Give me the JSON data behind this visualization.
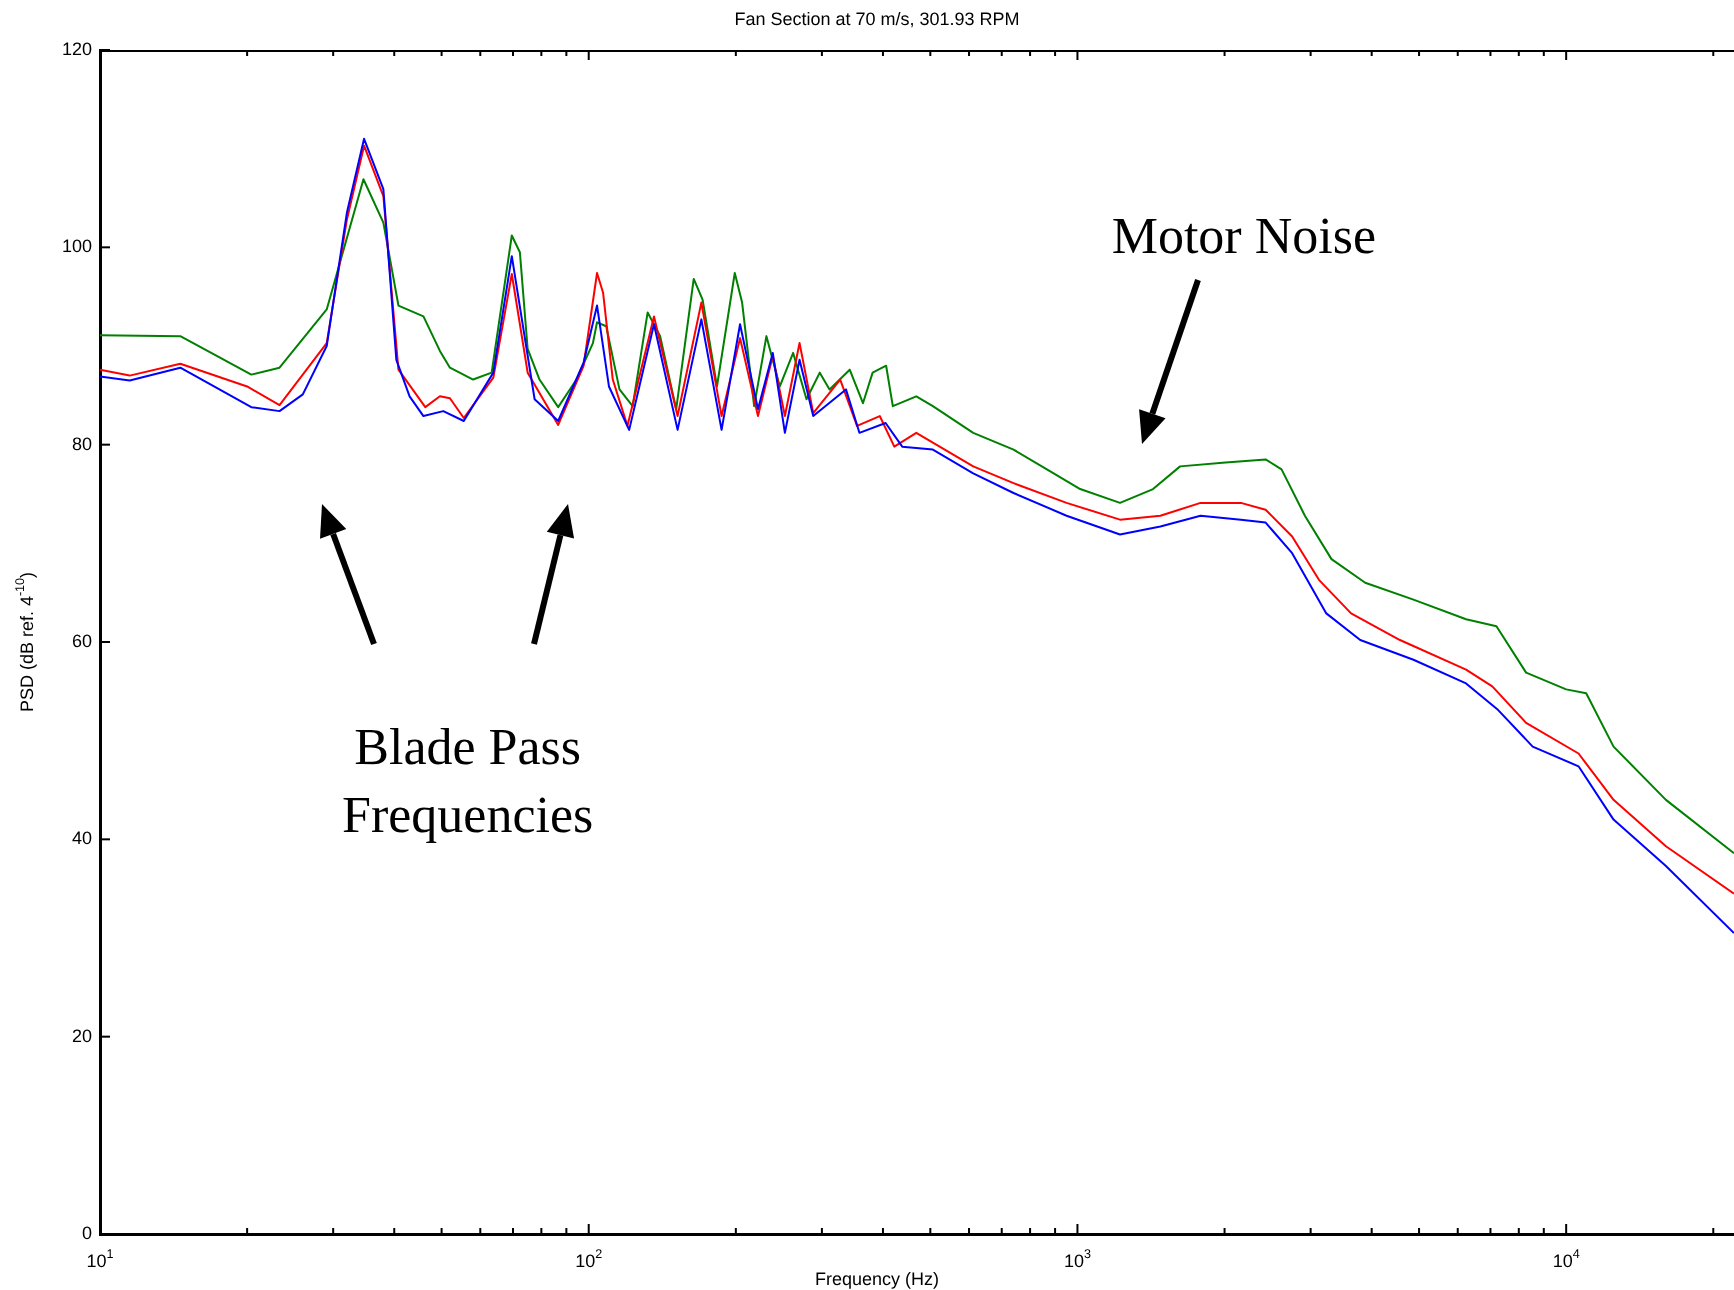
{
  "chart_data": {
    "type": "line",
    "title": "Fan Section at 70 m/s, 301.93 RPM",
    "xlabel": "Frequency (Hz)",
    "ylabel": "PSD (dB ref. 4$^{-10}$)",
    "log": "x",
    "grid": false,
    "legend": false,
    "marker": "none",
    "xlim": [
      10,
      22050
    ],
    "ylim": [
      0,
      120
    ],
    "xticks": [
      {
        "value": 10,
        "label": "10$^{1}$"
      },
      {
        "value": 20,
        "label": null
      },
      {
        "value": 30,
        "label": null
      },
      {
        "value": 40,
        "label": null
      },
      {
        "value": 50,
        "label": null
      },
      {
        "value": 60,
        "label": null
      },
      {
        "value": 70,
        "label": null
      },
      {
        "value": 80,
        "label": null
      },
      {
        "value": 90,
        "label": null
      },
      {
        "value": 100,
        "label": "10$^{2}$"
      },
      {
        "value": 200,
        "label": null
      },
      {
        "value": 300,
        "label": null
      },
      {
        "value": 400,
        "label": null
      },
      {
        "value": 500,
        "label": null
      },
      {
        "value": 600,
        "label": null
      },
      {
        "value": 700,
        "label": null
      },
      {
        "value": 800,
        "label": null
      },
      {
        "value": 900,
        "label": null
      },
      {
        "value": 1000,
        "label": "10$^{3}$"
      },
      {
        "value": 2000,
        "label": null
      },
      {
        "value": 3000,
        "label": null
      },
      {
        "value": 4000,
        "label": null
      },
      {
        "value": 5000,
        "label": null
      },
      {
        "value": 6000,
        "label": null
      },
      {
        "value": 7000,
        "label": null
      },
      {
        "value": 8000,
        "label": null
      },
      {
        "value": 9000,
        "label": null
      },
      {
        "value": 10000,
        "label": "10$^{4}$"
      },
      {
        "value": 20000,
        "label": null
      }
    ],
    "yticks": [
      0,
      20,
      40,
      60,
      80,
      100,
      120
    ],
    "annotations": [
      "Motor Noise",
      "Blade Pass\nFrequencies"
    ],
    "series": [
      {
        "color": "#0000ff",
        "x": [
          10,
          11.5,
          14.6,
          20.4,
          23.3,
          26,
          29.1,
          32,
          34.7,
          38,
          40.4,
          43,
          45.9,
          50.4,
          55.5,
          63.8,
          69.6,
          77.5,
          86.6,
          97.6,
          104,
          110,
          121,
          136,
          152,
          170,
          187,
          204,
          222,
          238,
          252,
          270,
          288,
          336,
          358,
          405,
          438,
          506,
          612,
          740,
          950,
          1222,
          1478,
          1786,
          2160,
          2427,
          2750,
          3230,
          3790,
          4870,
          6240,
          7260,
          8540,
          10600,
          12500,
          16000,
          22050
        ],
        "values": [
          86.9,
          86.5,
          87.8,
          83.8,
          83.4,
          85.1,
          90,
          103.5,
          111,
          105.9,
          88.6,
          84.9,
          82.9,
          83.4,
          82.4,
          87.3,
          99.1,
          84.6,
          82.4,
          88.3,
          94.1,
          85.9,
          81.5,
          92.2,
          81.5,
          92.7,
          81.5,
          92.2,
          83.6,
          89.3,
          81.2,
          88.6,
          82.9,
          85.6,
          81.2,
          82.2,
          79.8,
          79.5,
          77.1,
          75.1,
          72.8,
          70.9,
          71.7,
          72.8,
          72.4,
          72.1,
          69,
          62.9,
          60.2,
          58.2,
          55.8,
          53.1,
          49.4,
          47.4,
          42,
          37.3,
          30.5
        ]
      },
      {
        "color": "#ff0000",
        "x": [
          10,
          11.5,
          14.6,
          20,
          23.3,
          29.1,
          32,
          34.7,
          38,
          40.8,
          46.3,
          49.6,
          52,
          55.5,
          63.8,
          69.6,
          75,
          86.6,
          97.6,
          104,
          107,
          112,
          120,
          136,
          152,
          170,
          187,
          204,
          222,
          238,
          252,
          270,
          288,
          327,
          354,
          394,
          422,
          468,
          506,
          612,
          740,
          950,
          1222,
          1478,
          1786,
          2160,
          2427,
          2750,
          3120,
          3630,
          4570,
          6240,
          7060,
          8280,
          10600,
          12500,
          16000,
          22050
        ],
        "values": [
          87.6,
          87,
          88.2,
          85.9,
          84,
          90.3,
          102.8,
          110.3,
          105.2,
          87.6,
          83.8,
          84.9,
          84.7,
          82.7,
          86.8,
          97.3,
          87.3,
          82,
          88,
          97.4,
          95.4,
          86.6,
          81.9,
          93,
          82.9,
          94.4,
          82.9,
          90.8,
          82.9,
          89,
          82.9,
          90.3,
          83.2,
          86.6,
          81.9,
          82.9,
          79.8,
          81.2,
          80.2,
          77.8,
          76.1,
          74.1,
          72.4,
          72.8,
          74.1,
          74.1,
          73.4,
          70.7,
          66.3,
          62.9,
          60.2,
          57.2,
          55.5,
          51.8,
          48.7,
          44,
          39.3,
          34.5
        ]
      },
      {
        "color": "#008000",
        "x": [
          10,
          14.6,
          20.4,
          23.3,
          29.1,
          34.6,
          38,
          40.8,
          45.9,
          49.6,
          52,
          58,
          63.3,
          69.6,
          72.3,
          75,
          79.3,
          86.6,
          94.4,
          102,
          104,
          108.6,
          115.6,
          123,
          132,
          140,
          151,
          164,
          171,
          183,
          199,
          206,
          218,
          231,
          246,
          262,
          279,
          297,
          311,
          342,
          364,
          381,
          406,
          419,
          468,
          506,
          612,
          740,
          894,
          1013,
          1222,
          1428,
          1622,
          2010,
          2427,
          2616,
          2920,
          3310,
          3880,
          4870,
          6240,
          7200,
          8280,
          10000,
          10990,
          12500,
          16000,
          22050
        ],
        "values": [
          91.1,
          91,
          87.1,
          87.8,
          93.7,
          106.9,
          102.5,
          94.1,
          93,
          89.5,
          87.8,
          86.6,
          87.3,
          101.2,
          99.5,
          89.7,
          86.6,
          83.8,
          86.6,
          90.3,
          92.4,
          92,
          85.6,
          83.9,
          93.4,
          91,
          83.6,
          96.8,
          94.7,
          85.9,
          97.4,
          94.4,
          83.9,
          91,
          85.9,
          89.3,
          84.6,
          87.3,
          85.6,
          87.6,
          84.2,
          87.3,
          88,
          83.9,
          84.9,
          83.9,
          81.2,
          79.5,
          77.1,
          75.5,
          74.1,
          75.5,
          77.8,
          78.2,
          78.5,
          77.5,
          72.8,
          68.4,
          66,
          64.3,
          62.3,
          61.6,
          56.9,
          55.2,
          54.8,
          49.4,
          44,
          38.6
        ]
      }
    ]
  }
}
